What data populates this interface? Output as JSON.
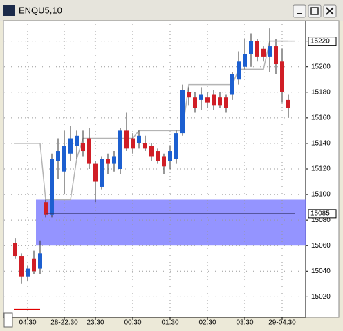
{
  "chart_data": {
    "type": "candlestick",
    "title": "ENQU5,10",
    "categories": [
      null,
      null,
      "04:30",
      null,
      null,
      null,
      null,
      null,
      "28-22:30",
      null,
      null,
      null,
      null,
      "23:30",
      null,
      null,
      null,
      null,
      null,
      "00:30",
      null,
      null,
      null,
      null,
      null,
      "01:30",
      null,
      null,
      null,
      null,
      null,
      "02:30",
      null,
      null,
      null,
      null,
      null,
      "03:30",
      null,
      null,
      null,
      null,
      null,
      "29-04:30",
      null
    ],
    "open": [
      15062,
      15052,
      15036,
      15050,
      15042,
      15094,
      15084,
      15126,
      15118,
      15132,
      15138,
      15140,
      15144,
      15124,
      15106,
      15128,
      15124,
      15120,
      15150,
      15144,
      15140,
      15140,
      15138,
      15134,
      15130,
      15126,
      15128,
      15148,
      15180,
      15176,
      15174,
      15176,
      15178,
      15176,
      15176,
      15178,
      15190,
      15200,
      15210,
      15220,
      15214,
      15208,
      15216,
      15204,
      15174
    ],
    "high": [
      15066,
      15054,
      15044,
      15056,
      15064,
      15096,
      15132,
      15144,
      15150,
      15154,
      15150,
      15150,
      15152,
      15126,
      15130,
      15132,
      15134,
      15152,
      15164,
      15148,
      15150,
      15146,
      15140,
      15136,
      15132,
      15138,
      15150,
      15186,
      15184,
      15180,
      15184,
      15180,
      15182,
      15180,
      15178,
      15196,
      15212,
      15222,
      15226,
      15222,
      15216,
      15230,
      15222,
      15214,
      15178
    ],
    "low": [
      15050,
      15030,
      15032,
      15038,
      15038,
      15082,
      15082,
      15112,
      15100,
      15126,
      15128,
      15130,
      15120,
      15094,
      15104,
      15116,
      15118,
      15116,
      15134,
      15132,
      15136,
      15134,
      15126,
      15124,
      15116,
      15120,
      15124,
      15146,
      15170,
      15164,
      15166,
      15168,
      15166,
      15168,
      15164,
      15174,
      15186,
      15198,
      15200,
      15204,
      15204,
      15196,
      15194,
      15172,
      15160
    ],
    "close": [
      15052,
      15036,
      15042,
      15040,
      15054,
      15084,
      15128,
      15134,
      15138,
      15144,
      15146,
      15134,
      15124,
      15110,
      15128,
      15124,
      15130,
      15150,
      15136,
      15136,
      15146,
      15136,
      15130,
      15126,
      15122,
      15134,
      15148,
      15182,
      15176,
      15168,
      15178,
      15172,
      15170,
      15170,
      15168,
      15194,
      15204,
      15210,
      15220,
      15208,
      15208,
      15216,
      15202,
      15180,
      15168
    ],
    "up_color": "#1c5fd0",
    "down_color": "#d01e26",
    "series": [
      {
        "color": "#b4b4b4",
        "values": [
          15140,
          15140,
          15140,
          15140,
          15140,
          15096,
          15096,
          15096,
          15096,
          15096,
          15128,
          15144,
          15144,
          15144,
          15144,
          15144,
          15144,
          15144,
          15144,
          15144,
          15150,
          15150,
          15150,
          15150,
          15150,
          15150,
          15150,
          15150,
          15186,
          15186,
          15186,
          15186,
          15186,
          15186,
          15186,
          15186,
          15198,
          15198,
          15198,
          15198,
          15198,
          15220,
          15220,
          15220,
          15220
        ]
      },
      {
        "color": "#e00000",
        "values": [
          15010,
          15010,
          15010,
          15010,
          15010,
          null,
          null,
          null,
          null,
          null,
          null,
          null,
          null,
          null,
          null,
          null,
          null,
          null,
          null,
          null,
          null,
          null,
          null,
          null,
          null,
          null,
          null,
          null,
          null,
          null,
          null,
          null,
          null,
          null,
          null,
          null,
          null,
          null,
          null,
          null,
          null,
          null,
          null,
          null,
          null
        ]
      }
    ],
    "zone": [
      15060,
      15096
    ],
    "zone_color": "#7070ff",
    "price_line": 15085,
    "last_level": 15220,
    "ylim": [
      15004,
      15236
    ],
    "yticks": [
      15020,
      15040,
      15060,
      15080,
      15100,
      15120,
      15140,
      15160,
      15180,
      15200,
      15220
    ],
    "grid": true
  }
}
